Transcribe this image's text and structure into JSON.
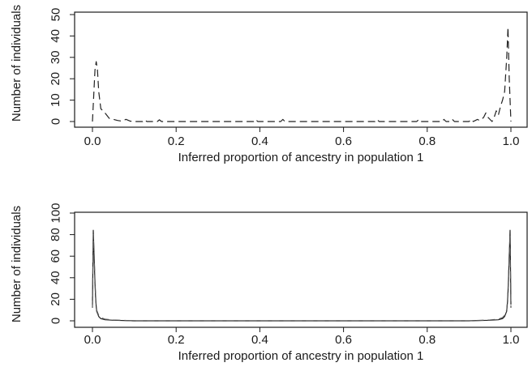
{
  "chart_data": [
    {
      "type": "line",
      "title": "",
      "xlabel": "Inferred proportion of ancestry in population 1",
      "ylabel": "Number of individuals",
      "xlim": [
        0.0,
        1.0
      ],
      "ylim": [
        0,
        50
      ],
      "xticks": [
        "0.0",
        "0.2",
        "0.4",
        "0.6",
        "0.8",
        "1.0"
      ],
      "yticks": [
        "0",
        "10",
        "20",
        "30",
        "40",
        "50"
      ],
      "grid": false,
      "legend": "none",
      "series": [
        {
          "style": "dashed",
          "color": "#222222",
          "x": [
            0.0,
            0.003,
            0.006,
            0.009,
            0.012,
            0.015,
            0.02,
            0.03,
            0.04,
            0.05,
            0.06,
            0.07,
            0.08,
            0.09,
            0.1,
            0.12,
            0.125,
            0.13,
            0.155,
            0.16,
            0.165,
            0.2,
            0.3,
            0.385,
            0.39,
            0.395,
            0.45,
            0.455,
            0.46,
            0.5,
            0.6,
            0.675,
            0.68,
            0.685,
            0.7,
            0.775,
            0.78,
            0.785,
            0.8,
            0.835,
            0.84,
            0.845,
            0.855,
            0.86,
            0.865,
            0.9,
            0.905,
            0.91,
            0.915,
            0.92,
            0.925,
            0.93,
            0.935,
            0.94,
            0.945,
            0.95,
            0.955,
            0.96,
            0.965,
            0.97,
            0.975,
            0.98,
            0.985,
            0.99,
            0.993,
            0.996,
            1.0
          ],
          "y": [
            0,
            12,
            24,
            28,
            24,
            14,
            6,
            4,
            1.5,
            1,
            0.5,
            0.2,
            1,
            0.2,
            0,
            0,
            0.8,
            0,
            0,
            0.8,
            0,
            0,
            0,
            0,
            1,
            0,
            0,
            1,
            0,
            0,
            0,
            0,
            1,
            0,
            0,
            0,
            1,
            0,
            0,
            0,
            1,
            0,
            0,
            1,
            0,
            0,
            1,
            0,
            0.5,
            1,
            0.5,
            1,
            2,
            4,
            2,
            1,
            0,
            2,
            5,
            3,
            7,
            10,
            14,
            30,
            44,
            20,
            0
          ]
        }
      ]
    },
    {
      "type": "line",
      "title": "",
      "xlabel": "Inferred proportion of ancestry in population 1",
      "ylabel": "Number of individuals",
      "xlim": [
        0.0,
        1.0
      ],
      "ylim": [
        0,
        100
      ],
      "xticks": [
        "0.0",
        "0.2",
        "0.4",
        "0.6",
        "0.8",
        "1.0"
      ],
      "yticks": [
        "0",
        "20",
        "40",
        "60",
        "80",
        "100"
      ],
      "grid": false,
      "legend": "none",
      "series": [
        {
          "style": "solid",
          "color": "#222222",
          "x": [
            0.0,
            0.002,
            0.004,
            0.006,
            0.008,
            0.01,
            0.015,
            0.02,
            0.03,
            0.05,
            0.1,
            0.5,
            0.9,
            0.95,
            0.97,
            0.98,
            0.985,
            0.99,
            0.992,
            0.994,
            0.996,
            0.998,
            1.0
          ],
          "y": [
            15,
            84,
            60,
            35,
            18,
            9,
            4,
            2,
            1,
            0.5,
            0,
            0,
            0,
            0.5,
            1,
            2,
            4,
            9,
            18,
            35,
            60,
            84,
            15
          ]
        },
        {
          "style": "dashed",
          "color": "#555555",
          "x": [
            0.0,
            0.002,
            0.004,
            0.006,
            0.008,
            0.01,
            0.015,
            0.02,
            0.03,
            0.05,
            0.1,
            0.5,
            0.9,
            0.95,
            0.97,
            0.98,
            0.985,
            0.99,
            0.992,
            0.994,
            0.996,
            0.998,
            1.0
          ],
          "y": [
            12,
            80,
            62,
            38,
            20,
            10,
            5,
            3,
            1.5,
            0.8,
            0,
            0,
            0,
            0.8,
            1.5,
            3,
            5,
            10,
            20,
            38,
            62,
            80,
            12
          ]
        }
      ]
    }
  ]
}
